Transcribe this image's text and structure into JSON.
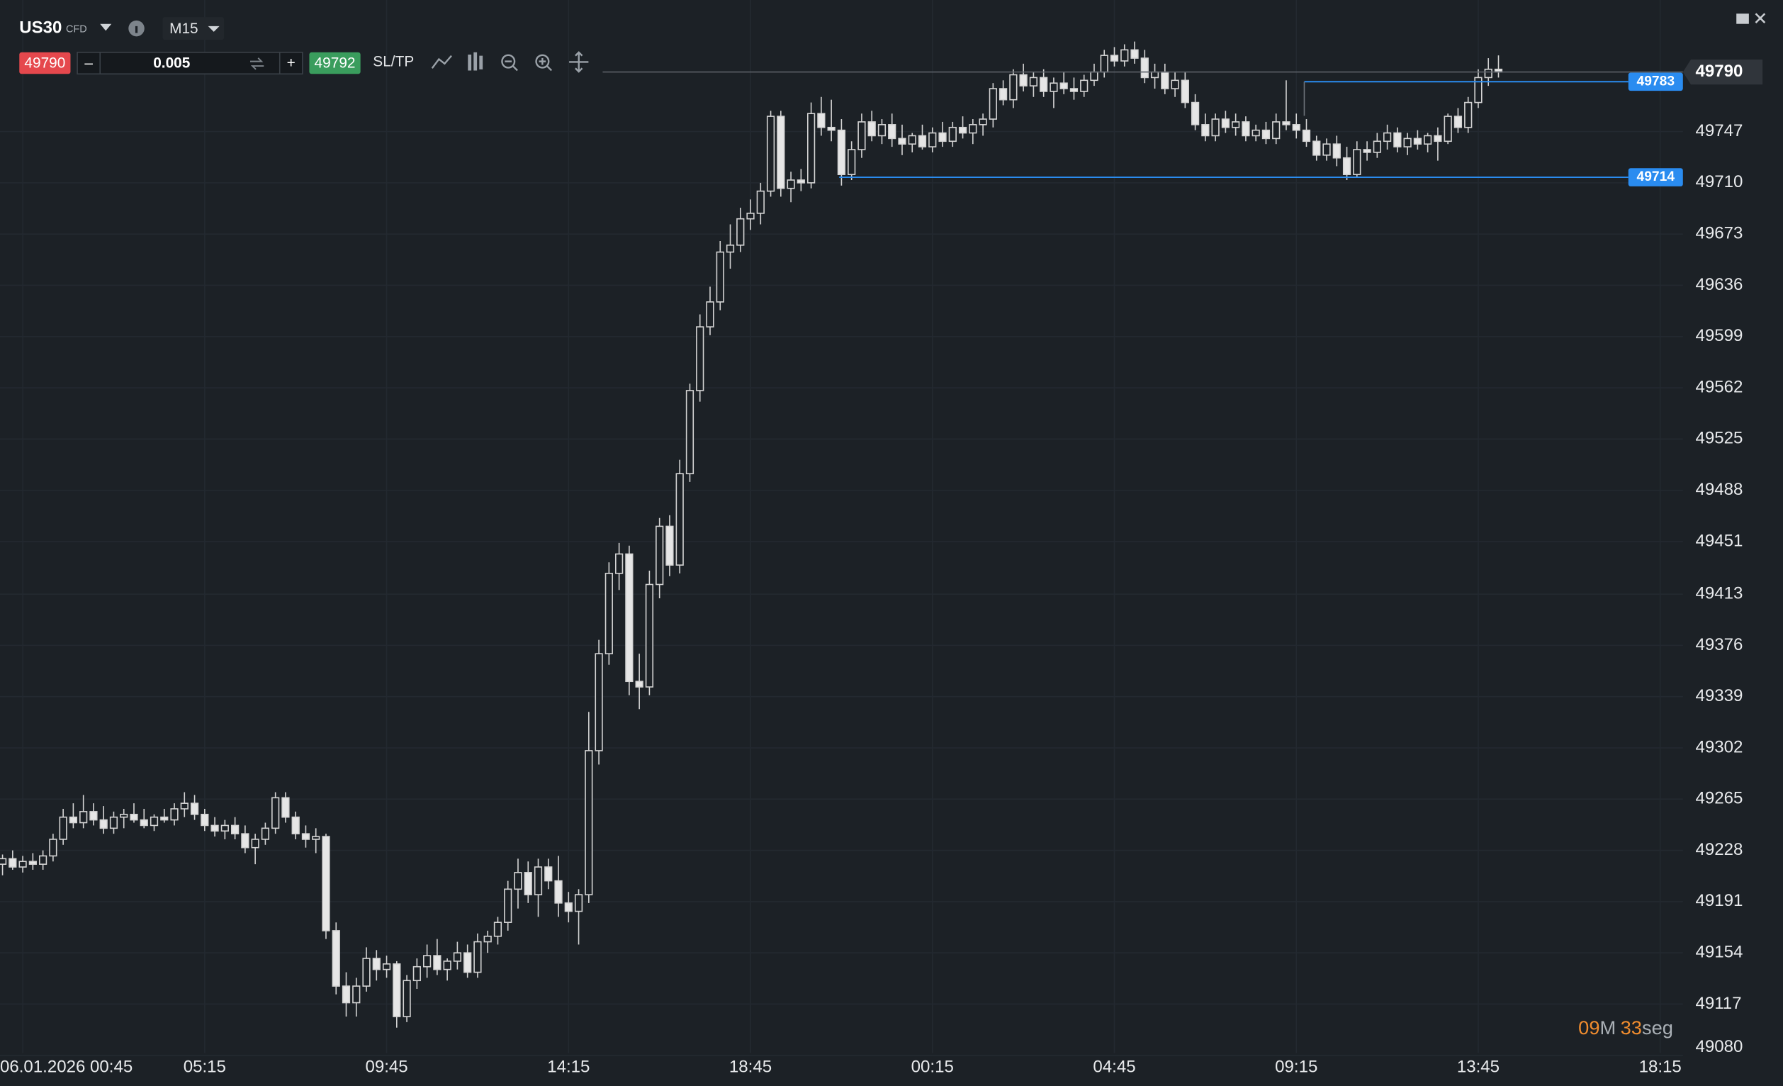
{
  "toolbar": {
    "symbol": "US30",
    "symbol_type": "CFD",
    "timeframe": "M15",
    "sell": 49790,
    "minus": "–",
    "volume": "0.005",
    "plus": "+",
    "buy": 49792,
    "sltp": "SL/TP"
  },
  "countdown": {
    "minutes": "09",
    "minutes_unit": "M",
    "seconds": "33",
    "seconds_unit": "seg"
  },
  "chart_data": {
    "type": "candlestick",
    "up_color": "#1c2126",
    "down_color": "#e6e6e6",
    "wick_color": "#d4d4d4",
    "xlim": [
      -0.25,
      166.25
    ],
    "xticks": [
      {
        "value": 2,
        "label": "06.01.2026 00:45"
      },
      {
        "value": 20,
        "label": "05:15"
      },
      {
        "value": 38,
        "label": "09:45"
      },
      {
        "value": 56,
        "label": "14:15"
      },
      {
        "value": 74,
        "label": "18:45"
      },
      {
        "value": 92,
        "label": "00:15"
      },
      {
        "value": 110,
        "label": "04:45"
      },
      {
        "value": 128,
        "label": "09:15"
      },
      {
        "value": 146,
        "label": "13:45"
      },
      {
        "value": 164,
        "label": "18:15"
      }
    ],
    "ylim": [
      49077,
      49842
    ],
    "yticks": [
      49747,
      49710,
      49673,
      49636,
      49599,
      49562,
      49525,
      49488,
      49451,
      49413,
      49376,
      49339,
      49302,
      49265,
      49228,
      49191,
      49154,
      49117,
      49080
    ],
    "grid": true,
    "last_price": 49790,
    "levels": [
      {
        "value": 49783,
        "color": "#2a8cf0"
      },
      {
        "value": 49714,
        "color": "#2a8cf0"
      }
    ],
    "ohlc": [
      [
        49218,
        49225,
        49210,
        49222
      ],
      [
        49222,
        49228,
        49214,
        49216
      ],
      [
        49216,
        49224,
        49212,
        49220
      ],
      [
        49220,
        49226,
        49214,
        49218
      ],
      [
        49218,
        49228,
        49214,
        49224
      ],
      [
        49224,
        49240,
        49220,
        49236
      ],
      [
        49236,
        49258,
        49232,
        49252
      ],
      [
        49252,
        49262,
        49244,
        49248
      ],
      [
        49248,
        49268,
        49244,
        49256
      ],
      [
        49256,
        49262,
        49246,
        49250
      ],
      [
        49250,
        49260,
        49240,
        49244
      ],
      [
        49244,
        49256,
        49240,
        49252
      ],
      [
        49252,
        49258,
        49244,
        49254
      ],
      [
        49254,
        49262,
        49248,
        49250
      ],
      [
        49250,
        49258,
        49244,
        49246
      ],
      [
        49246,
        49254,
        49242,
        49252
      ],
      [
        49252,
        49258,
        49248,
        49250
      ],
      [
        49250,
        49262,
        49246,
        49258
      ],
      [
        49258,
        49270,
        49252,
        49262
      ],
      [
        49262,
        49268,
        49250,
        49254
      ],
      [
        49254,
        49258,
        49242,
        49246
      ],
      [
        49246,
        49252,
        49238,
        49242
      ],
      [
        49242,
        49250,
        49236,
        49246
      ],
      [
        49246,
        49252,
        49236,
        49240
      ],
      [
        49240,
        49246,
        49226,
        49230
      ],
      [
        49230,
        49240,
        49218,
        49236
      ],
      [
        49236,
        49248,
        49232,
        49244
      ],
      [
        49244,
        49270,
        49240,
        49266
      ],
      [
        49266,
        49270,
        49248,
        49252
      ],
      [
        49252,
        49256,
        49236,
        49240
      ],
      [
        49240,
        49246,
        49230,
        49236
      ],
      [
        49236,
        49244,
        49226,
        49238
      ],
      [
        49238,
        49240,
        49164,
        49170
      ],
      [
        49170,
        49176,
        49124,
        49130
      ],
      [
        49130,
        49140,
        49108,
        49118
      ],
      [
        49118,
        49136,
        49108,
        49130
      ],
      [
        49130,
        49158,
        49126,
        49150
      ],
      [
        49150,
        49156,
        49134,
        49142
      ],
      [
        49142,
        49152,
        49136,
        49146
      ],
      [
        49146,
        49148,
        49100,
        49108
      ],
      [
        49108,
        49138,
        49104,
        49134
      ],
      [
        49134,
        49150,
        49128,
        49144
      ],
      [
        49144,
        49160,
        49136,
        49152
      ],
      [
        49152,
        49164,
        49138,
        49142
      ],
      [
        49142,
        49150,
        49134,
        49148
      ],
      [
        49148,
        49162,
        49142,
        49154
      ],
      [
        49154,
        49160,
        49136,
        49140
      ],
      [
        49140,
        49168,
        49136,
        49162
      ],
      [
        49162,
        49170,
        49154,
        49166
      ],
      [
        49166,
        49180,
        49160,
        49176
      ],
      [
        49176,
        49206,
        49170,
        49200
      ],
      [
        49200,
        49222,
        49186,
        49212
      ],
      [
        49212,
        49220,
        49190,
        49196
      ],
      [
        49196,
        49222,
        49180,
        49216
      ],
      [
        49216,
        49222,
        49200,
        49206
      ],
      [
        49206,
        49224,
        49180,
        49190
      ],
      [
        49190,
        49198,
        49176,
        49184
      ],
      [
        49184,
        49200,
        49160,
        49196
      ],
      [
        49196,
        49328,
        49190,
        49300
      ],
      [
        49300,
        49380,
        49290,
        49370
      ],
      [
        49370,
        49436,
        49362,
        49428
      ],
      [
        49428,
        49450,
        49416,
        49442
      ],
      [
        49442,
        49448,
        49340,
        49350
      ],
      [
        49350,
        49370,
        49330,
        49346
      ],
      [
        49346,
        49430,
        49340,
        49420
      ],
      [
        49420,
        49468,
        49410,
        49462
      ],
      [
        49462,
        49470,
        49426,
        49434
      ],
      [
        49434,
        49510,
        49428,
        49500
      ],
      [
        49500,
        49565,
        49494,
        49560
      ],
      [
        49560,
        49615,
        49552,
        49606
      ],
      [
        49606,
        49635,
        49600,
        49624
      ],
      [
        49624,
        49668,
        49618,
        49660
      ],
      [
        49660,
        49680,
        49648,
        49665
      ],
      [
        49665,
        49692,
        49660,
        49684
      ],
      [
        49684,
        49698,
        49676,
        49688
      ],
      [
        49688,
        49710,
        49680,
        49704
      ],
      [
        49704,
        49762,
        49700,
        49758
      ],
      [
        49758,
        49762,
        49700,
        49706
      ],
      [
        49706,
        49718,
        49696,
        49712
      ],
      [
        49712,
        49720,
        49704,
        49710
      ],
      [
        49710,
        49768,
        49706,
        49760
      ],
      [
        49760,
        49772,
        49744,
        49750
      ],
      [
        49750,
        49770,
        49740,
        49748
      ],
      [
        49748,
        49756,
        49708,
        49716
      ],
      [
        49716,
        49740,
        49712,
        49734
      ],
      [
        49734,
        49760,
        49728,
        49754
      ],
      [
        49754,
        49762,
        49740,
        49744
      ],
      [
        49744,
        49756,
        49738,
        49752
      ],
      [
        49752,
        49760,
        49736,
        49742
      ],
      [
        49742,
        49752,
        49730,
        49738
      ],
      [
        49738,
        49746,
        49732,
        49744
      ],
      [
        49744,
        49752,
        49734,
        49736
      ],
      [
        49736,
        49750,
        49732,
        49746
      ],
      [
        49746,
        49754,
        49736,
        49740
      ],
      [
        49740,
        49754,
        49736,
        49750
      ],
      [
        49750,
        49758,
        49742,
        49746
      ],
      [
        49746,
        49756,
        49738,
        49752
      ],
      [
        49752,
        49760,
        49744,
        49756
      ],
      [
        49756,
        49782,
        49750,
        49778
      ],
      [
        49778,
        49784,
        49766,
        49770
      ],
      [
        49770,
        49792,
        49764,
        49788
      ],
      [
        49788,
        49796,
        49776,
        49780
      ],
      [
        49780,
        49790,
        49772,
        49786
      ],
      [
        49786,
        49792,
        49772,
        49776
      ],
      [
        49776,
        49786,
        49764,
        49782
      ],
      [
        49782,
        49790,
        49774,
        49778
      ],
      [
        49778,
        49786,
        49770,
        49776
      ],
      [
        49776,
        49788,
        49772,
        49784
      ],
      [
        49784,
        49796,
        49780,
        49790
      ],
      [
        49790,
        49806,
        49786,
        49802
      ],
      [
        49802,
        49808,
        49794,
        49798
      ],
      [
        49798,
        49810,
        49794,
        49806
      ],
      [
        49806,
        49812,
        49796,
        49800
      ],
      [
        49800,
        49806,
        49782,
        49786
      ],
      [
        49786,
        49796,
        49778,
        49790
      ],
      [
        49790,
        49796,
        49774,
        49778
      ],
      [
        49778,
        49790,
        49772,
        49784
      ],
      [
        49784,
        49790,
        49764,
        49768
      ],
      [
        49768,
        49774,
        49748,
        49752
      ],
      [
        49752,
        49760,
        49740,
        49744
      ],
      [
        49744,
        49760,
        49740,
        49756
      ],
      [
        49756,
        49762,
        49746,
        49750
      ],
      [
        49750,
        49760,
        49744,
        49754
      ],
      [
        49754,
        49758,
        49740,
        49744
      ],
      [
        49744,
        49752,
        49740,
        49748
      ],
      [
        49748,
        49754,
        49738,
        49742
      ],
      [
        49742,
        49760,
        49738,
        49754
      ],
      [
        49754,
        49784,
        49748,
        49752
      ],
      [
        49752,
        49760,
        49742,
        49748
      ],
      [
        49748,
        49756,
        49736,
        49740
      ],
      [
        49740,
        49744,
        49726,
        49730
      ],
      [
        49730,
        49742,
        49726,
        49738
      ],
      [
        49738,
        49744,
        49722,
        49728
      ],
      [
        49728,
        49736,
        49712,
        49716
      ],
      [
        49716,
        49740,
        49714,
        49734
      ],
      [
        49734,
        49740,
        49726,
        49732
      ],
      [
        49732,
        49746,
        49728,
        49740
      ],
      [
        49740,
        49752,
        49734,
        49746
      ],
      [
        49746,
        49750,
        49732,
        49736
      ],
      [
        49736,
        49746,
        49730,
        49742
      ],
      [
        49742,
        49748,
        49734,
        49738
      ],
      [
        49738,
        49746,
        49732,
        49744
      ],
      [
        49744,
        49750,
        49726,
        49740
      ],
      [
        49740,
        49760,
        49738,
        49758
      ],
      [
        49758,
        49764,
        49746,
        49750
      ],
      [
        49750,
        49772,
        49746,
        49768
      ],
      [
        49768,
        49792,
        49764,
        49786
      ],
      [
        49786,
        49800,
        49780,
        49792
      ],
      [
        49792,
        49802,
        49786,
        49790
      ]
    ]
  }
}
